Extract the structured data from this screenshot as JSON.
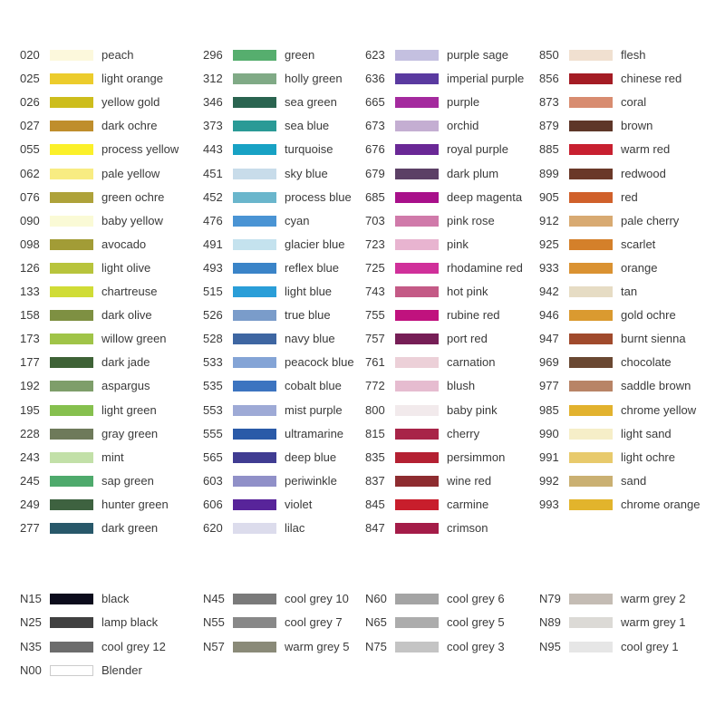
{
  "main_columns": [
    [
      [
        "020",
        "peach",
        "#fcf8dc"
      ],
      [
        "025",
        "light orange",
        "#eccc2c"
      ],
      [
        "026",
        "yellow gold",
        "#cdbd1c"
      ],
      [
        "027",
        "dark ochre",
        "#bf8e2c"
      ],
      [
        "055",
        "process yellow",
        "#fbf02a"
      ],
      [
        "062",
        "pale yellow",
        "#f8ec82"
      ],
      [
        "076",
        "green ochre",
        "#aea23a"
      ],
      [
        "090",
        "baby yellow",
        "#fafad6"
      ],
      [
        "098",
        "avocado",
        "#a29c36"
      ],
      [
        "126",
        "light olive",
        "#b8c43c"
      ],
      [
        "133",
        "chartreuse",
        "#d0dc36"
      ],
      [
        "158",
        "dark olive",
        "#7e9042"
      ],
      [
        "173",
        "willow green",
        "#a0c448"
      ],
      [
        "177",
        "dark jade",
        "#3e6236"
      ],
      [
        "192",
        "aspargus",
        "#7e9e6a"
      ],
      [
        "195",
        "light green",
        "#86c04e"
      ],
      [
        "228",
        "gray green",
        "#6e7a5a"
      ],
      [
        "243",
        "mint",
        "#c2e0a8"
      ],
      [
        "245",
        "sap green",
        "#4eaa6c"
      ],
      [
        "249",
        "hunter green",
        "#3e6240"
      ],
      [
        "277",
        "dark green",
        "#28586a"
      ]
    ],
    [
      [
        "296",
        "green",
        "#56ae6e"
      ],
      [
        "312",
        "holly green",
        "#80aa86"
      ],
      [
        "346",
        "sea green",
        "#2a6450"
      ],
      [
        "373",
        "sea blue",
        "#2a9a96"
      ],
      [
        "443",
        "turquoise",
        "#18a2c4"
      ],
      [
        "451",
        "sky blue",
        "#c8dcea"
      ],
      [
        "452",
        "process blue",
        "#6ab6cc"
      ],
      [
        "476",
        "cyan",
        "#4a94d4"
      ],
      [
        "491",
        "glacier blue",
        "#c4e2ee"
      ],
      [
        "493",
        "reflex blue",
        "#3a84c8"
      ],
      [
        "515",
        "light blue",
        "#2a9ed8"
      ],
      [
        "526",
        "true blue",
        "#7a9cca"
      ],
      [
        "528",
        "navy blue",
        "#3e66a2"
      ],
      [
        "533",
        "peacock blue",
        "#84a4d6"
      ],
      [
        "535",
        "cobalt blue",
        "#3c74c0"
      ],
      [
        "553",
        "mist purple",
        "#9eaad6"
      ],
      [
        "555",
        "ultramarine",
        "#2a5aa8"
      ],
      [
        "565",
        "deep blue",
        "#403c92"
      ],
      [
        "603",
        "periwinkle",
        "#9090c8"
      ],
      [
        "606",
        "violet",
        "#58249a"
      ],
      [
        "620",
        "lilac",
        "#dcdcec"
      ]
    ],
    [
      [
        "623",
        "purple sage",
        "#c4c0e0"
      ],
      [
        "636",
        "imperial purple",
        "#5a3aa0"
      ],
      [
        "665",
        "purple",
        "#a42a9e"
      ],
      [
        "673",
        "orchid",
        "#c4aed2"
      ],
      [
        "676",
        "royal purple",
        "#6a2896"
      ],
      [
        "679",
        "dark plum",
        "#5c4066"
      ],
      [
        "685",
        "deep magenta",
        "#a8108a"
      ],
      [
        "703",
        "pink rose",
        "#d07aaa"
      ],
      [
        "723",
        "pink",
        "#e8b4d0"
      ],
      [
        "725",
        "rhodamine red",
        "#d0309a"
      ],
      [
        "743",
        "hot pink",
        "#c45a86"
      ],
      [
        "755",
        "rubine red",
        "#c0127e"
      ],
      [
        "757",
        "port red",
        "#761e56"
      ],
      [
        "761",
        "carnation",
        "#ecd0d8"
      ],
      [
        "772",
        "blush",
        "#e6bcd0"
      ],
      [
        "800",
        "baby pink",
        "#f2eaec"
      ],
      [
        "815",
        "cherry",
        "#a82448"
      ],
      [
        "835",
        "persimmon",
        "#b42032"
      ],
      [
        "837",
        "wine red",
        "#8e2c30"
      ],
      [
        "845",
        "carmine",
        "#c81e2c"
      ],
      [
        "847",
        "crimson",
        "#a41c48"
      ]
    ],
    [
      [
        "850",
        "flesh",
        "#f0e0d0"
      ],
      [
        "856",
        "chinese red",
        "#a41c24"
      ],
      [
        "873",
        "coral",
        "#d88c70"
      ],
      [
        "879",
        "brown",
        "#5e3628"
      ],
      [
        "885",
        "warm red",
        "#c82030"
      ],
      [
        "899",
        "redwood",
        "#6a3828"
      ],
      [
        "905",
        "red",
        "#d0602a"
      ],
      [
        "912",
        "pale cherry",
        "#d8aa72"
      ],
      [
        "925",
        "scarlet",
        "#d4802a"
      ],
      [
        "933",
        "orange",
        "#da9232"
      ],
      [
        "942",
        "tan",
        "#e6dcc4"
      ],
      [
        "946",
        "gold ochre",
        "#da9a30"
      ],
      [
        "947",
        "burnt sienna",
        "#a04a2c"
      ],
      [
        "969",
        "chocolate",
        "#6a4832"
      ],
      [
        "977",
        "saddle brown",
        "#b88466"
      ],
      [
        "985",
        "chrome yellow",
        "#e2b22e"
      ],
      [
        "990",
        "light sand",
        "#f6eec8"
      ],
      [
        "991",
        "light ochre",
        "#e8ca6c"
      ],
      [
        "992",
        "sand",
        "#cab072"
      ],
      [
        "993",
        "chrome orange",
        "#e2b42c"
      ]
    ]
  ],
  "grey_columns": [
    [
      [
        "N15",
        "black",
        "#0c0c1c"
      ],
      [
        "N25",
        "lamp black",
        "#404040"
      ],
      [
        "N35",
        "cool grey 12",
        "#6c6c6c"
      ],
      [
        "N00",
        "Blender",
        "#ffffff"
      ]
    ],
    [
      [
        "N45",
        "cool grey 10",
        "#7a7a7a"
      ],
      [
        "N55",
        "cool grey 7",
        "#888888"
      ],
      [
        "N57",
        "warm grey 5",
        "#8a8a78"
      ]
    ],
    [
      [
        "N60",
        "cool grey 6",
        "#a4a4a4"
      ],
      [
        "N65",
        "cool grey 5",
        "#acacac"
      ],
      [
        "N75",
        "cool grey 3",
        "#c4c4c4"
      ]
    ],
    [
      [
        "N79",
        "warm grey 2",
        "#c4bcb4"
      ],
      [
        "N89",
        "warm grey 1",
        "#dcdad6"
      ],
      [
        "N95",
        "cool grey 1",
        "#e6e6e6"
      ]
    ]
  ]
}
